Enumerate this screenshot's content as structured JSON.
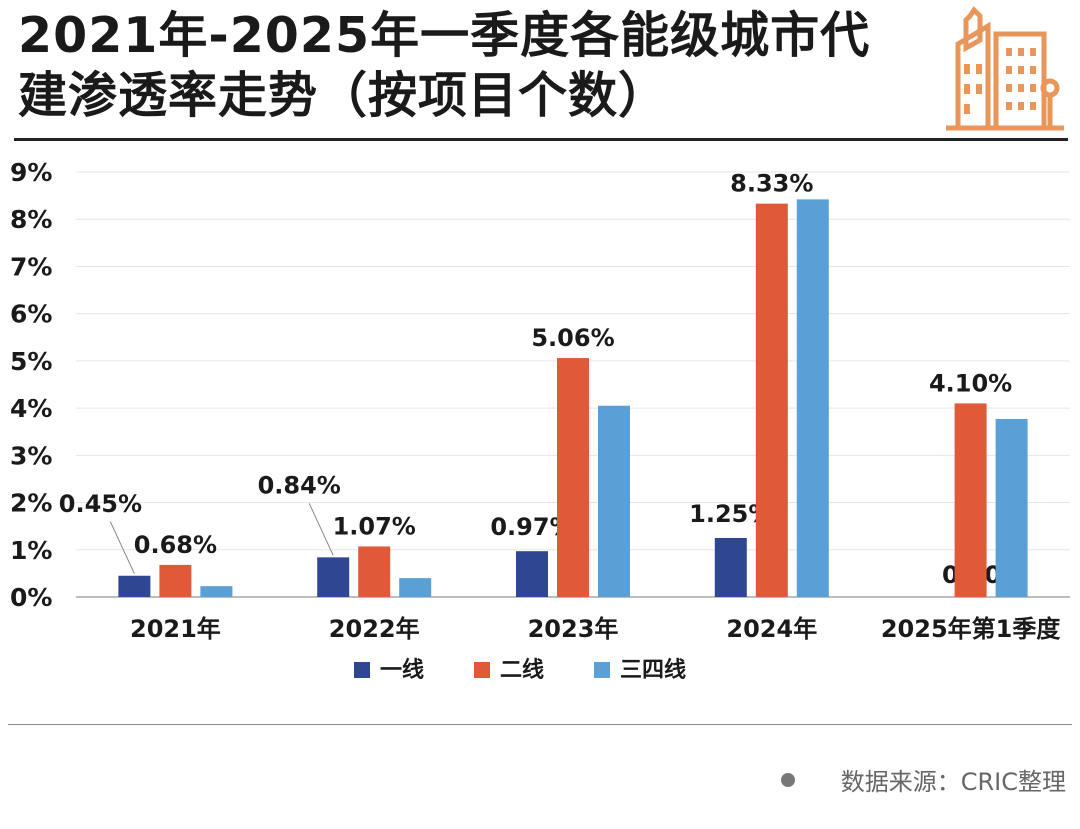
{
  "title": "2021年-2025年一季度各能级城市代建渗透率走势（按项目个数）",
  "source": "数据来源：CRIC整理",
  "icons": {
    "logo": "building-skyline-icon",
    "source_dot": "bullet-dot-icon"
  },
  "colors": {
    "logo": "#e8965a"
  },
  "chart_data": {
    "type": "bar",
    "title": "2021年-2025年一季度各能级城市代建渗透率走势（按项目个数）",
    "xlabel": "",
    "ylabel": "",
    "categories": [
      "2021年",
      "2022年",
      "2023年",
      "2024年",
      "2025年第1季度"
    ],
    "ylim": [
      0,
      9
    ],
    "yticks": [
      "0%",
      "1%",
      "2%",
      "3%",
      "4%",
      "5%",
      "6%",
      "7%",
      "8%",
      "9%"
    ],
    "grid": true,
    "legend": "bottom",
    "series": [
      {
        "name": "一线",
        "color": "#2f4793",
        "values": [
          0.45,
          0.84,
          0.97,
          1.25,
          0.0
        ],
        "labels": [
          "0.45%",
          "0.84%",
          "0.97%",
          "1.25%",
          "0.00%"
        ]
      },
      {
        "name": "二线",
        "color": "#e05a3a",
        "values": [
          0.68,
          1.07,
          5.06,
          8.33,
          4.1
        ],
        "labels": [
          "0.68%",
          "1.07%",
          "5.06%",
          "8.33%",
          "4.10%"
        ]
      },
      {
        "name": "三四线",
        "color": "#5aa0d6",
        "values": [
          0.23,
          0.4,
          4.05,
          8.42,
          3.77
        ],
        "labels": [
          "",
          "",
          "",
          "",
          ""
        ]
      }
    ]
  }
}
